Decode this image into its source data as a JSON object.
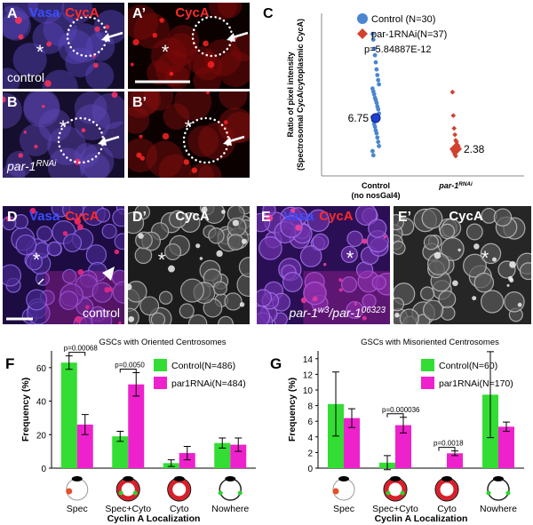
{
  "images": [
    {
      "letter": "A",
      "marker": "*",
      "channels": [
        {
          "name": "Vasa",
          "color": "#3b4dff"
        },
        {
          "name": "CycA",
          "color": "#ff2a2a"
        }
      ],
      "caption": [
        {
          "text": "control"
        }
      ]
    },
    {
      "letter": "A’",
      "marker": "*",
      "channels": [
        {
          "name": "CycA",
          "color": "#ff2a2a"
        }
      ],
      "caption": []
    },
    {
      "letter": "B",
      "marker": "*",
      "channels": [],
      "caption": [
        {
          "text": "par-1"
        },
        {
          "text": "RNAi",
          "sup": true
        }
      ]
    },
    {
      "letter": "B’",
      "marker": "*",
      "channels": [],
      "caption": []
    },
    {
      "letter": "D",
      "marker": "*",
      "channels": [
        {
          "name": "Vasa",
          "color": "#3b4dff"
        },
        {
          "name": "CycA",
          "color": "#ff2a2a"
        }
      ],
      "caption": [
        {
          "text": "control"
        }
      ]
    },
    {
      "letter": "D’",
      "marker": "*",
      "channels": [
        {
          "name": "CycA",
          "color": "#ffffff"
        }
      ],
      "caption": []
    },
    {
      "letter": "E",
      "marker": "*",
      "channels": [
        {
          "name": "Vasa",
          "color": "#3b4dff"
        },
        {
          "name": "CycA",
          "color": "#ff2a2a"
        }
      ],
      "caption": [
        {
          "text": "par-1"
        },
        {
          "text": "w3",
          "sup": true
        },
        {
          "text": "/par-1"
        },
        {
          "text": "06323",
          "sup": true
        }
      ]
    },
    {
      "letter": "E’",
      "marker": "*",
      "channels": [
        {
          "name": "CycA",
          "color": "#ffffff"
        }
      ],
      "caption": []
    }
  ],
  "chart_data": [
    {
      "type": "scatter",
      "letter": "C",
      "ylabel": [
        "Ratio of pixel intensity",
        "(Spectrosomal CycA/cytoplasmic CycA)"
      ],
      "categories": [
        [
          {
            "text": "Control"
          },
          {
            "text": "(no nosGal4)",
            "newline": true
          }
        ],
        [
          {
            "text": "par-1"
          },
          {
            "text": "RNAi",
            "sup": true
          }
        ]
      ],
      "ylim": [
        -1.4,
        21.5
      ],
      "legend": "top-right",
      "annotation": "p=5.84887E-12",
      "series": [
        {
          "name": "Control (N=30)",
          "color": "#4a86d0",
          "marker": "circle",
          "mean": 6.75,
          "values": [
            18.6,
            17.8,
            16.5,
            15.6,
            14.6,
            13.6,
            12.8,
            12.1,
            11.5,
            10.9,
            10.5,
            10.1,
            9.6,
            9.3,
            8.9,
            8.4,
            8.0,
            7.4,
            6.9,
            6.4,
            5.9,
            5.5,
            5.0,
            4.6,
            4.0,
            3.4,
            2.8,
            2.1,
            1.5
          ]
        },
        {
          "name": "par-1RNAi(N=37)",
          "color": "#d2402e",
          "marker": "diamond",
          "mean": 2.38,
          "values": [
            10.4,
            7.1,
            5.3,
            4.4,
            3.6,
            3.4,
            3.0,
            2.8,
            2.5,
            2.3,
            2.1,
            1.9,
            1.6,
            1.4
          ]
        }
      ]
    },
    {
      "type": "bar",
      "letter": "F",
      "title": "GSCs with Oriented Centrosomes",
      "ylabel": "Frequency (%)",
      "xlabel": "Cyclin A Localization",
      "categories": [
        "Spec",
        "Spec+Cyto",
        "Cyto",
        "Nowhere"
      ],
      "ylim": [
        0,
        70
      ],
      "yticks": [
        0,
        20,
        40,
        60
      ],
      "series": [
        {
          "name": "Control(N=486)",
          "color": "#33dd33",
          "values": [
            63,
            19,
            3,
            15
          ],
          "errors": [
            4,
            3,
            2,
            3
          ]
        },
        {
          "name": "par1RNAi(N=484)",
          "color": "#ee22cc",
          "values": [
            26,
            50,
            9,
            14
          ],
          "errors": [
            6,
            7,
            4,
            4
          ]
        }
      ],
      "annotations": [
        {
          "text": "p=0.00068",
          "category": "Spec"
        },
        {
          "text": "p=0.0050",
          "category": "Spec+Cyto"
        }
      ]
    },
    {
      "type": "bar",
      "letter": "G",
      "title": "GSCs with Misoriented Centrosomes",
      "ylabel": "Frequency (%)",
      "xlabel": "Cyclin A Localization",
      "categories": [
        "Spec",
        "Spec+Cyto",
        "Cyto",
        "Nowhere"
      ],
      "ylim": [
        0,
        15
      ],
      "yticks": [
        0,
        2,
        4,
        6,
        8,
        10,
        12,
        14
      ],
      "series": [
        {
          "name": "Control(N=60)",
          "color": "#33dd33",
          "values": [
            8.2,
            0.7,
            0,
            9.4
          ],
          "errors": [
            4.1,
            0.9,
            0,
            5.5
          ]
        },
        {
          "name": "par1RNAi(N=170)",
          "color": "#ee22cc",
          "values": [
            6.4,
            5.5,
            1.9,
            5.3
          ],
          "errors": [
            1.2,
            1.0,
            0.3,
            0.6
          ]
        }
      ],
      "annotations": [
        {
          "text": "p=0.000036",
          "category": "Spec+Cyto"
        },
        {
          "text": "p=0.0018",
          "category": "Cyto"
        }
      ]
    }
  ]
}
